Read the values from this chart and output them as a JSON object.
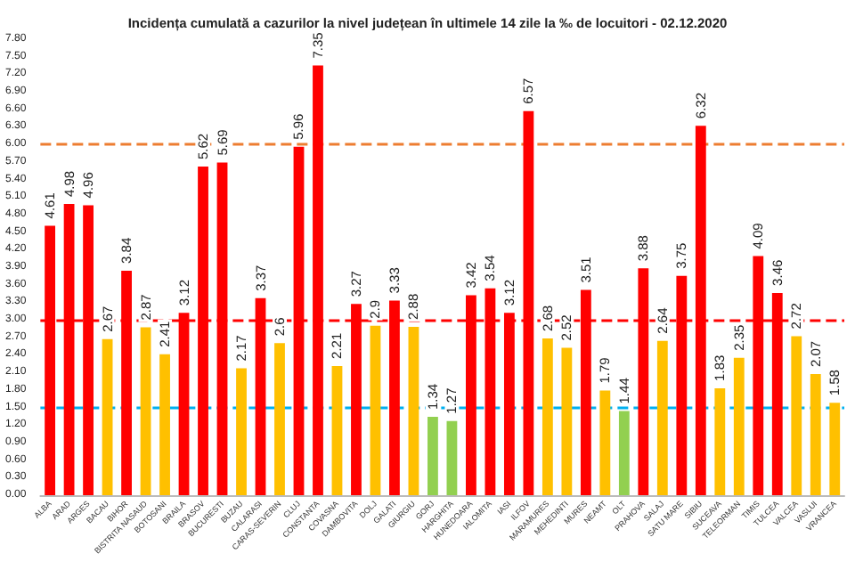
{
  "chart_data": {
    "type": "bar",
    "title": "Incidența cumulată a cazurilor la nivel județean în ultimele 14 zile la ‰ de locuitori - 02.12.2020",
    "categories": [
      "ALBA",
      "ARAD",
      "ARGES",
      "BACAU",
      "BIHOR",
      "BISTRITA NASAUD",
      "BOTOSANI",
      "BRAILA",
      "BRASOV",
      "BUCURESTI",
      "BUZAU",
      "CALARASI",
      "CARAS-SEVERIN",
      "CLUJ",
      "CONSTANTA",
      "COVASNA",
      "DAMBOVITA",
      "DOLJ",
      "GALATI",
      "GIURGIU",
      "GORJ",
      "HARGHITA",
      "HUNEDOARA",
      "IALOMITA",
      "IASI",
      "ILFOV",
      "MARAMURES",
      "MEHEDINTI",
      "MURES",
      "NEAMT",
      "OLT",
      "PRAHOVA",
      "SALAJ",
      "SATU MARE",
      "SIBIU",
      "SUCEAVA",
      "TELEORMAN",
      "TIMIS",
      "TULCEA",
      "VALCEA",
      "VASLUI",
      "VRANCEA"
    ],
    "values": [
      4.61,
      4.98,
      4.96,
      2.67,
      3.84,
      2.87,
      2.41,
      3.12,
      5.62,
      5.69,
      2.17,
      3.37,
      2.6,
      5.96,
      7.35,
      2.21,
      3.27,
      2.9,
      3.33,
      2.88,
      1.34,
      1.27,
      3.42,
      3.54,
      3.12,
      6.57,
      2.68,
      2.52,
      3.51,
      1.79,
      1.44,
      3.88,
      2.64,
      3.75,
      6.32,
      1.83,
      2.35,
      4.09,
      3.46,
      2.72,
      2.07,
      1.58
    ],
    "colors": [
      "#ff0000",
      "#ff0000",
      "#ff0000",
      "#ffc000",
      "#ff0000",
      "#ffc000",
      "#ffc000",
      "#ff0000",
      "#ff0000",
      "#ff0000",
      "#ffc000",
      "#ff0000",
      "#ffc000",
      "#ff0000",
      "#ff0000",
      "#ffc000",
      "#ff0000",
      "#ffc000",
      "#ff0000",
      "#ffc000",
      "#92d050",
      "#92d050",
      "#ff0000",
      "#ff0000",
      "#ff0000",
      "#ff0000",
      "#ffc000",
      "#ffc000",
      "#ff0000",
      "#ffc000",
      "#92d050",
      "#ff0000",
      "#ffc000",
      "#ff0000",
      "#ff0000",
      "#ffc000",
      "#ffc000",
      "#ff0000",
      "#ff0000",
      "#ffc000",
      "#ffc000",
      "#ffc000"
    ],
    "ylim": [
      0,
      7.8
    ],
    "yticks": [
      {
        "value": 0,
        "label": "0.00"
      },
      {
        "value": 0.3,
        "label": "0.30"
      },
      {
        "value": 0.6,
        "label": "0.60"
      },
      {
        "value": 0.9,
        "label": "0.90"
      },
      {
        "value": 1.2,
        "label": "1.20"
      },
      {
        "value": 1.5,
        "label": "1.50"
      },
      {
        "value": 1.8,
        "label": "1.80"
      },
      {
        "value": 2.1,
        "label": "2.10"
      },
      {
        "value": 2.4,
        "label": "2.40"
      },
      {
        "value": 2.7,
        "label": "2.70"
      },
      {
        "value": 3,
        "label": "3.00"
      },
      {
        "value": 3.3,
        "label": "3.30"
      },
      {
        "value": 3.6,
        "label": "3.60"
      },
      {
        "value": 3.9,
        "label": "3.90"
      },
      {
        "value": 4.2,
        "label": "4.20"
      },
      {
        "value": 4.5,
        "label": "4.50"
      },
      {
        "value": 4.8,
        "label": "4.80"
      },
      {
        "value": 5.1,
        "label": "5.10"
      },
      {
        "value": 5.4,
        "label": "5.40"
      },
      {
        "value": 5.7,
        "label": "5.70"
      },
      {
        "value": 6,
        "label": "6.00"
      },
      {
        "value": 6.3,
        "label": "6.30"
      },
      {
        "value": 6.6,
        "label": "6.60"
      },
      {
        "value": 6.9,
        "label": "6.90"
      },
      {
        "value": 7.2,
        "label": "7.20"
      },
      {
        "value": 7.5,
        "label": "7.50"
      },
      {
        "value": 7.8,
        "label": "7.80"
      }
    ],
    "ref_lines": [
      {
        "axis": "y",
        "value": 6,
        "color": "#ed7d31",
        "line_style": "dashed"
      },
      {
        "axis": "y",
        "value": 3,
        "color": "#ff0000",
        "line_style": "dashed"
      },
      {
        "axis": "y",
        "value": 1.5,
        "color": "#00b0f0",
        "line_style": "dashed"
      }
    ],
    "data_labels": true,
    "grid": false
  }
}
